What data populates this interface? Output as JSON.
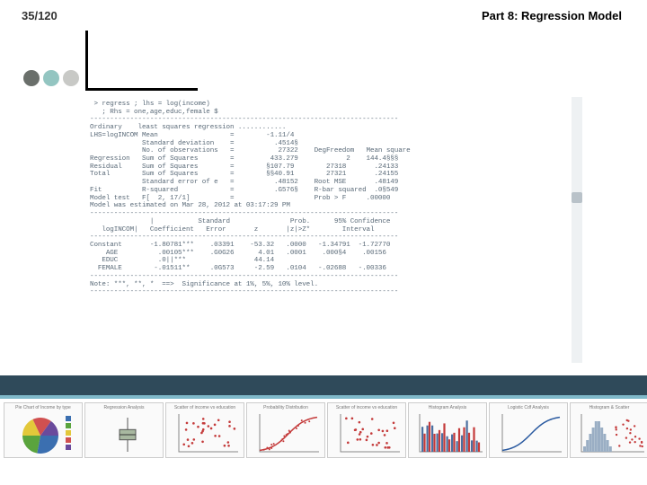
{
  "page_number": "35/120",
  "title": "Part 8: Regression Model",
  "decor_dots": [
    "#6a6f6b",
    "#93c5c1",
    "#c8c9c6"
  ],
  "band_colors": {
    "dark": "#2f4a5a",
    "light": "#7fb8c9"
  },
  "output": {
    "font": "Courier New",
    "color": "#5a6a78",
    "lines": [
      " > regress ; lhs = log(income)",
      "   ; Rhs = one,age,educ,female $",
      "-----------------------------------------------------------------------------",
      "Ordinary    least squares regression ............",
      "LHS=logINCOM Mean                  =        -1.11/4",
      "             Standard deviation    =          .4514§",
      "             No. of observations   =           27322    DegFreedom   Mean square",
      "Regression   Sum of Squares        =         433.279            2    144.4§§§",
      "Residual     Sum of Squares        =        §107.79        27318       .24133",
      "Total        Sum of Squares        =        §§40.91        27321       .24155",
      "             Standard error of e   =          .48152    Root MSE       .48149",
      "Fit          R-squared             =          .G576§    R-bar squared  .0§549",
      "Model test   F[  2, 17/1]          =                    Prob > F     .00000",
      "Model was estimated on Mar 28, 2012 at 03:17:29 PM",
      "-----------------------------------------------------------------------------",
      "               |           Standard               Prob.      95% Confidence",
      "   logINCOM|   Coefficient   Error       z       |z|>Z*        Interval",
      "-----------------------------------------------------------------------------",
      "Constant       -1.80781***    .03391    -53.32   .0000   -1.34791  -1.72770",
      "    AGE          .00105***    .G0G26      4.01   .0001    .000§4    .00156",
      "   EDUC          .0||***                 44.14",
      "  FEMALE        -.01511**     .0G573     -2.59   .0104   -.02688   -.00336",
      "-----------------------------------------------------------------------------",
      "Note: ***, **, *  ==>  Significance at 1%, 5%, 10% level.",
      "-----------------------------------------------------------------------------"
    ]
  },
  "thumbnails": [
    {
      "type": "pie",
      "title": "Pie Chart of Income by type",
      "colors": [
        "#3b6fb0",
        "#5aa43d",
        "#e3c83a",
        "#d05050",
        "#6a4a9c"
      ]
    },
    {
      "type": "boxplot",
      "title": "Regression Analysis",
      "box_color": "#a8b8a0",
      "median": 0.5,
      "q1": 0.35,
      "q3": 0.65
    },
    {
      "type": "scatter",
      "title": "Scatter of income vs education",
      "point_color": "#c43a3a",
      "n": 28
    },
    {
      "type": "curve",
      "title": "Probability Distribution",
      "line_color": "#c43a3a",
      "shape": "logistic"
    },
    {
      "type": "scatter",
      "title": "Scatter of income vs education",
      "point_color": "#c43a3a",
      "n": 28
    },
    {
      "type": "hist-grouped",
      "title": "Histogram Analysis",
      "colors": [
        "#4a6fa0",
        "#c43a3a"
      ],
      "bars": 12
    },
    {
      "type": "logistic",
      "title": "Logistic Cdf Analysis",
      "line_color": "#2a5aa0"
    },
    {
      "type": "hist-scatter",
      "title": "Histogram & Scatter",
      "hist_color": "#9aaec4",
      "point_color": "#c43a3a"
    }
  ]
}
